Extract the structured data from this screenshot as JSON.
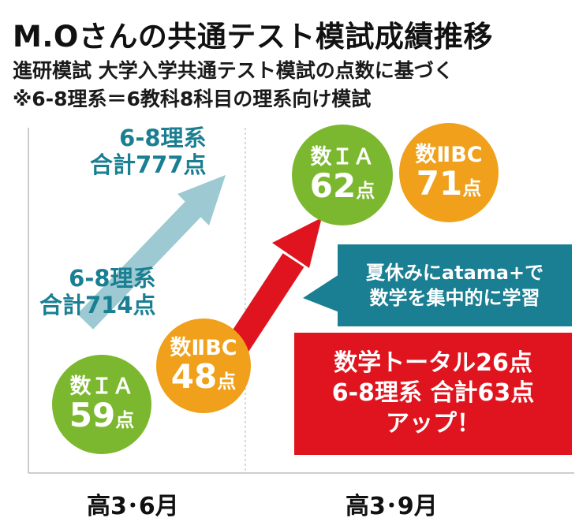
{
  "header": {
    "title": "M.Oさんの共通テスト模試成績推移",
    "subtitle_1": "進研模試 大学入学共通テスト模試の点数に基づく",
    "subtitle_2": "※6-8理系＝6教科8科目の理系向け模試"
  },
  "chart_data": {
    "type": "bubble-comparison",
    "categories": [
      "高3・6月",
      "高3・9月"
    ],
    "totals": {
      "label": "6-8理系",
      "before_text": "6-8理系\n合計714点",
      "after_text": "6-8理系\n合計777点",
      "values": [
        714,
        777
      ],
      "unit": "点"
    },
    "subjects": [
      {
        "name": "数ＩＡ",
        "values": [
          59,
          62
        ],
        "unit": "点",
        "color": "#7cb82f"
      },
      {
        "name": "数ⅡBC",
        "values": [
          48,
          71
        ],
        "unit": "点",
        "color": "#f0a01a"
      }
    ]
  },
  "labels": {
    "total_before_line1": "6-8理系",
    "total_before_line2": "合計714点",
    "total_after_line1": "6-8理系",
    "total_after_line2": "合計777点",
    "x1": "高3･6月",
    "x2": "高3･9月",
    "ia_name": "数ＩＡ",
    "bc_name": "数ⅡBC",
    "ia_before": "59",
    "bc_before": "48",
    "ia_after": "62",
    "bc_after": "71",
    "unit": "点"
  },
  "callout": {
    "line1": "夏休みにatama+で",
    "line2": "数学を集中的に学習"
  },
  "highlight": {
    "line1": "数学トータル26点",
    "line2": "6-8理系 合計63点",
    "line3": "アップ！"
  },
  "colors": {
    "teal": "#1a7f92",
    "light_teal_arrow": "#9cc9d2",
    "red": "#e0141e",
    "green": "#7cb82f",
    "orange": "#f0a01a"
  }
}
